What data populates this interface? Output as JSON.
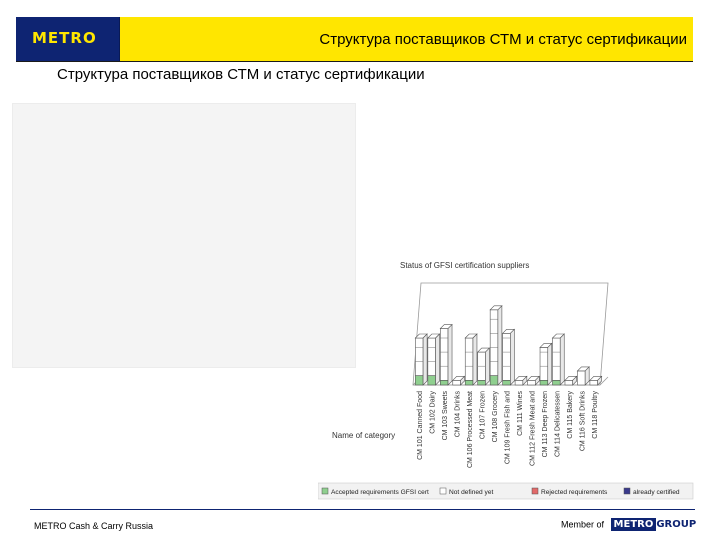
{
  "header": {
    "logo_text": "METRO",
    "title": "Структура поставщиков СТМ и статус сертификации"
  },
  "page_title": "Структура поставщиков СТМ и статус сертификации",
  "footer": {
    "left": "METRO Cash & Carry Russia",
    "member_of": "Member of",
    "group_logo_1": "METRO",
    "group_logo_2": "GROUP"
  },
  "colors": {
    "accent_yellow": "#ffe600",
    "brand_blue": "#0e2472",
    "series_accepted": "#8fcf8f",
    "series_not_defined": "#ffffff",
    "series_rejected": "#e26a6a",
    "series_certified": "#3a3a8c"
  },
  "chart_data": {
    "type": "bar",
    "title": "Status of GFSI certification suppliers",
    "xlabel": "Name of category",
    "ylabel": "",
    "grid": false,
    "legend_position": "bottom",
    "categories": [
      "CM 101 Canned Food",
      "CM 102 Dairy",
      "CM 103 Sweets",
      "CM 104 Drinks",
      "CM 106 Processed Meat",
      "CM 107 Frozen",
      "CM 108 Grocery",
      "CM 109 Fresh Fish and",
      "CM 111 Wines",
      "CM 112 Fresh Meat and",
      "CM 113 Deep Frozen",
      "CM 114 Delicatessen",
      "CM 115 Bakery",
      "CM 116 Soft Drinks",
      "CM 118 Poultry"
    ],
    "series": [
      {
        "name": "Accepted requirements GFSI cert",
        "values": [
          2,
          2,
          1,
          0,
          1,
          1,
          2,
          1,
          0,
          0,
          1,
          1,
          0,
          0,
          0
        ]
      },
      {
        "name": "Not defined yet",
        "values": [
          8,
          8,
          11,
          1,
          9,
          6,
          14,
          10,
          1,
          1,
          7,
          9,
          1,
          3,
          1
        ]
      },
      {
        "name": "Rejected requirements",
        "values": [
          0,
          0,
          0,
          0,
          0,
          0,
          0,
          0,
          0,
          0,
          0,
          0,
          0,
          0,
          0
        ]
      },
      {
        "name": "already certified",
        "values": [
          0,
          0,
          0,
          0,
          0,
          0,
          0,
          0,
          0,
          0,
          0,
          0,
          0,
          0,
          0
        ]
      }
    ],
    "ylim": [
      0,
      20
    ]
  }
}
